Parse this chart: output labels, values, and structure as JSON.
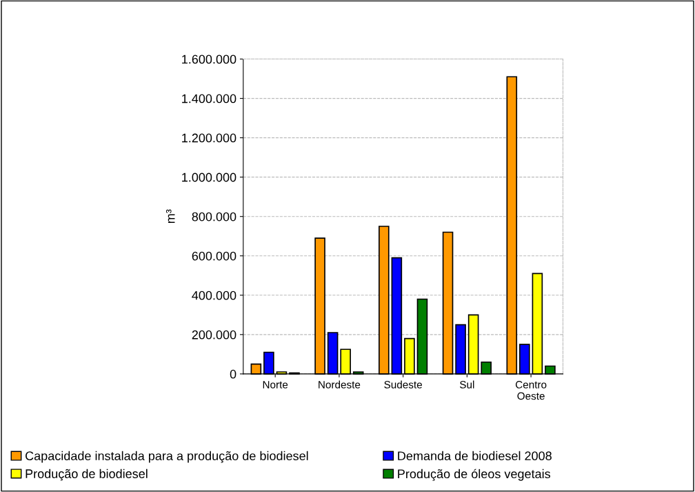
{
  "chart_data": {
    "type": "bar",
    "ylabel": "m³",
    "categories": [
      "Norte",
      "Nordeste",
      "Sudeste",
      "Sul",
      "Centro\nOeste"
    ],
    "series": [
      {
        "name": "Capacidade instalada para a produção de biodiesel",
        "color": "#ff9900",
        "values": [
          50000,
          690000,
          750000,
          720000,
          1510000
        ]
      },
      {
        "name": "Demanda de biodiesel 2008",
        "color": "#0000ff",
        "values": [
          110000,
          210000,
          590000,
          250000,
          150000
        ]
      },
      {
        "name": "Produção de biodiesel",
        "color": "#ffff00",
        "values": [
          10000,
          125000,
          180000,
          300000,
          510000
        ]
      },
      {
        "name": "Produção de óleos vegetais",
        "color": "#007f00",
        "values": [
          5000,
          10000,
          380000,
          60000,
          40000
        ]
      }
    ],
    "ylim": [
      0,
      1600000
    ],
    "yticks": [
      {
        "value": 0,
        "label": "0"
      },
      {
        "value": 200000,
        "label": "200.000"
      },
      {
        "value": 400000,
        "label": "400.000"
      },
      {
        "value": 600000,
        "label": "600.000"
      },
      {
        "value": 800000,
        "label": "800.000"
      },
      {
        "value": 1000000,
        "label": "1.000.000"
      },
      {
        "value": 1200000,
        "label": "1.200.000"
      },
      {
        "value": 1400000,
        "label": "1.400.000"
      },
      {
        "value": 1600000,
        "label": "1.600.000"
      }
    ],
    "grid": "y",
    "legend": "bottom"
  }
}
